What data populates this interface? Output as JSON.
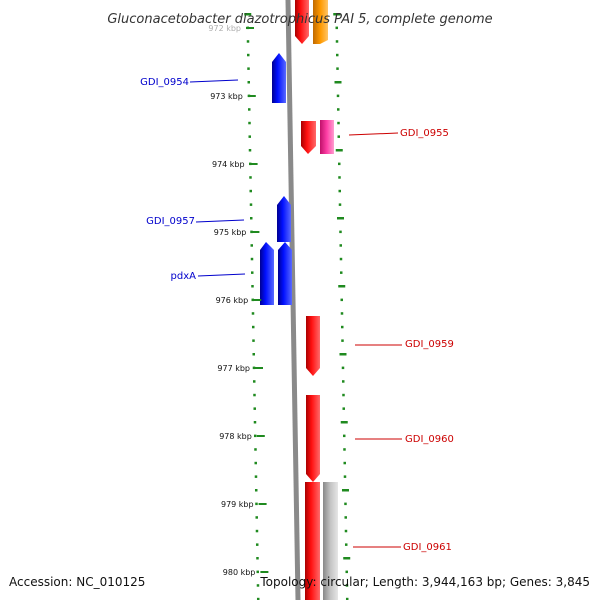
{
  "title": "Gluconacetobacter diazotrophicus PAI 5, complete genome",
  "accession": "Accession: NC_010125",
  "topology": "Topology: circular; Length: 3,944,163 bp; Genes: 3,845",
  "axis": {
    "ticks": [
      "972 kbp",
      "973 kbp",
      "974 kbp",
      "975 kbp",
      "976 kbp",
      "977 kbp",
      "978 kbp",
      "979 kbp",
      "980 kbp"
    ]
  },
  "colors": {
    "forward_strand": "#0000ee",
    "reverse_strand": "#ee0000",
    "pink_gene": "#ff3fa6",
    "orange_gene": "#ff9a00",
    "grey_gene": "#bbbbbb",
    "backbone": "#8a8a8a",
    "dots": "#1f8a1f",
    "left_label": "#0000cc",
    "right_label": "#cc0000"
  },
  "genes": {
    "left_labels": [
      {
        "name": "GDI_0954"
      },
      {
        "name": "GDI_0957"
      },
      {
        "name": "pdxA"
      }
    ],
    "right_labels": [
      {
        "name": "GDI_0955"
      },
      {
        "name": "GDI_0959"
      },
      {
        "name": "GDI_0960"
      },
      {
        "name": "GDI_0961"
      }
    ]
  }
}
